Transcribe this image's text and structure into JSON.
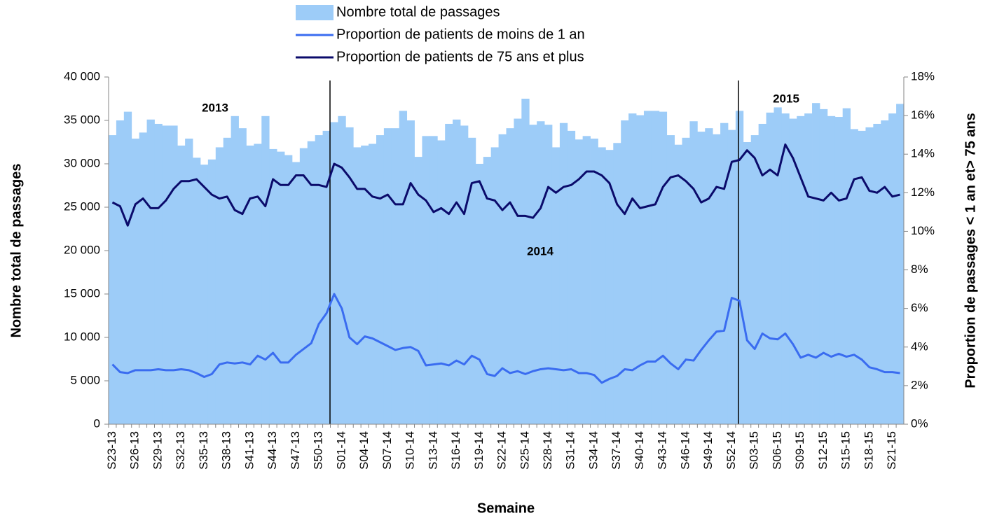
{
  "chart_data": {
    "type": "combo",
    "x_label": "Semaine",
    "y_label": "Nombre total de passages",
    "y2_label": "Proportion de passages < 1 an et> 75 ans",
    "annotations": [
      "2013",
      "2014",
      "2015"
    ],
    "categories": [
      "S23-13",
      null,
      null,
      "S26-13",
      null,
      null,
      "S29-13",
      null,
      null,
      "S32-13",
      null,
      null,
      "S35-13",
      null,
      null,
      "S38-13",
      null,
      null,
      "S41-13",
      null,
      null,
      "S44-13",
      null,
      null,
      "S47-13",
      null,
      null,
      "S50-13",
      null,
      null,
      "S01-14",
      null,
      null,
      "S04-14",
      null,
      null,
      "S07-14",
      null,
      null,
      "S10-14",
      null,
      null,
      "S13-14",
      null,
      null,
      "S16-14",
      null,
      null,
      "S19-14",
      null,
      null,
      "S22-14",
      null,
      null,
      "S25-14",
      null,
      null,
      "S28-14",
      null,
      null,
      "S31-14",
      null,
      null,
      "S34-14",
      null,
      null,
      "S37-14",
      null,
      null,
      "S40-14",
      null,
      null,
      "S43-14",
      null,
      null,
      "S46-14",
      null,
      null,
      "S49-14",
      null,
      null,
      "S52-14",
      null,
      null,
      "S03-15",
      null,
      null,
      "S06-15",
      null,
      null,
      "S09-15",
      null,
      null,
      "S12-15",
      null,
      null,
      "S15-15",
      null,
      null,
      "S18-15",
      null,
      null,
      "S21-15",
      null
    ],
    "series": [
      {
        "name": "Nombre total de passages",
        "type": "bar",
        "color": "#9dccf8",
        "values": [
          33300,
          35000,
          36000,
          32900,
          33600,
          35100,
          34600,
          34400,
          34400,
          32100,
          32900,
          30700,
          29900,
          30500,
          31900,
          33000,
          35500,
          34100,
          32100,
          32300,
          35500,
          31700,
          31400,
          31000,
          30200,
          31800,
          32600,
          33300,
          33800,
          34800,
          35500,
          34200,
          31900,
          32100,
          32300,
          33300,
          34100,
          34100,
          36100,
          35000,
          30800,
          33200,
          33200,
          32700,
          34600,
          35100,
          34400,
          33000,
          30000,
          30800,
          31900,
          33400,
          34100,
          35200,
          37500,
          34500,
          34900,
          34500,
          31900,
          34700,
          33800,
          32800,
          33200,
          32900,
          31900,
          31600,
          32400,
          35000,
          35800,
          35600,
          36100,
          36100,
          36000,
          33300,
          32200,
          33000,
          34900,
          33700,
          34100,
          33400,
          34700,
          33900,
          36100,
          32500,
          33300,
          34600,
          35900,
          36500,
          35800,
          35200,
          35500,
          35800,
          37000,
          36300,
          35500,
          35400,
          36400,
          34000,
          33800,
          34200,
          34600,
          35000,
          35800,
          36900
        ]
      },
      {
        "name": "Proportion de patients de moins de 1 an",
        "type": "line",
        "axis": "y2",
        "color": "#3a6cf0",
        "values": [
          3.1,
          2.7,
          2.65,
          2.8,
          2.8,
          2.8,
          2.85,
          2.8,
          2.8,
          2.85,
          2.8,
          2.65,
          2.45,
          2.6,
          3.1,
          3.2,
          3.15,
          3.2,
          3.1,
          3.55,
          3.35,
          3.7,
          3.2,
          3.2,
          3.6,
          3.9,
          4.2,
          5.2,
          5.75,
          6.75,
          6.0,
          4.5,
          4.15,
          4.55,
          4.45,
          4.25,
          4.05,
          3.85,
          3.95,
          4.0,
          3.8,
          3.05,
          3.1,
          3.15,
          3.05,
          3.3,
          3.1,
          3.55,
          3.35,
          2.6,
          2.5,
          2.9,
          2.65,
          2.75,
          2.6,
          2.75,
          2.85,
          2.9,
          2.85,
          2.8,
          2.85,
          2.65,
          2.65,
          2.55,
          2.15,
          2.35,
          2.5,
          2.85,
          2.8,
          3.05,
          3.25,
          3.25,
          3.55,
          3.15,
          2.85,
          3.35,
          3.3,
          3.85,
          4.35,
          4.8,
          4.85,
          6.55,
          6.4,
          4.35,
          3.9,
          4.7,
          4.45,
          4.4,
          4.7,
          4.15,
          3.45,
          3.6,
          3.45,
          3.7,
          3.5,
          3.65,
          3.5,
          3.6,
          3.35,
          2.95,
          2.85,
          2.7,
          2.7,
          2.65
        ]
      },
      {
        "name": "Proportion de patients de 75 ans et plus",
        "type": "line",
        "axis": "y2",
        "color": "#0b0b6b",
        "values": [
          11.5,
          11.3,
          10.3,
          11.4,
          11.7,
          11.2,
          11.2,
          11.6,
          12.2,
          12.6,
          12.6,
          12.7,
          12.3,
          11.9,
          11.7,
          11.8,
          11.1,
          10.9,
          11.7,
          11.8,
          11.3,
          12.7,
          12.4,
          12.4,
          12.9,
          12.9,
          12.4,
          12.4,
          12.3,
          13.5,
          13.3,
          12.8,
          12.2,
          12.2,
          11.8,
          11.7,
          11.9,
          11.4,
          11.4,
          12.5,
          11.9,
          11.6,
          11.0,
          11.2,
          10.9,
          11.5,
          10.9,
          12.5,
          12.6,
          11.7,
          11.6,
          11.1,
          11.5,
          10.8,
          10.8,
          10.7,
          11.2,
          12.3,
          12.0,
          12.3,
          12.4,
          12.7,
          13.1,
          13.1,
          12.9,
          12.5,
          11.4,
          10.9,
          11.7,
          11.2,
          11.3,
          11.4,
          12.3,
          12.8,
          12.9,
          12.6,
          12.2,
          11.5,
          11.7,
          12.3,
          12.2,
          13.6,
          13.7,
          14.2,
          13.8,
          12.9,
          13.2,
          12.9,
          14.5,
          13.8,
          12.8,
          11.8,
          11.7,
          11.6,
          12.0,
          11.6,
          11.7,
          12.7,
          12.8,
          12.1,
          12.0,
          12.3,
          11.8,
          11.9
        ]
      }
    ],
    "ylim": [
      0,
      40000
    ],
    "yticks": [
      0,
      {
        "value": 5000,
        "label": "5 000"
      },
      {
        "value": 10000,
        "label": "10 000"
      },
      {
        "value": 15000,
        "label": "15 000"
      },
      {
        "value": 20000,
        "label": "20 000"
      },
      {
        "value": 25000,
        "label": "25 000"
      },
      {
        "value": 30000,
        "label": "30 000"
      },
      {
        "value": 35000,
        "label": "35 000"
      },
      {
        "value": 40000,
        "label": "40 000"
      }
    ],
    "y2lim": [
      0,
      18
    ],
    "y2ticks": [
      {
        "value": 0,
        "label": "0%"
      },
      {
        "value": 2,
        "label": "2%"
      },
      {
        "value": 4,
        "label": "4%"
      },
      {
        "value": 6,
        "label": "6%"
      },
      {
        "value": 8,
        "label": "8%"
      },
      {
        "value": 10,
        "label": "10%"
      },
      {
        "value": 12,
        "label": "12%"
      },
      {
        "value": 14,
        "label": "14%"
      },
      {
        "value": 16,
        "label": "16%"
      },
      {
        "value": 18,
        "label": "18%"
      }
    ],
    "grid": false,
    "legend": "top"
  }
}
